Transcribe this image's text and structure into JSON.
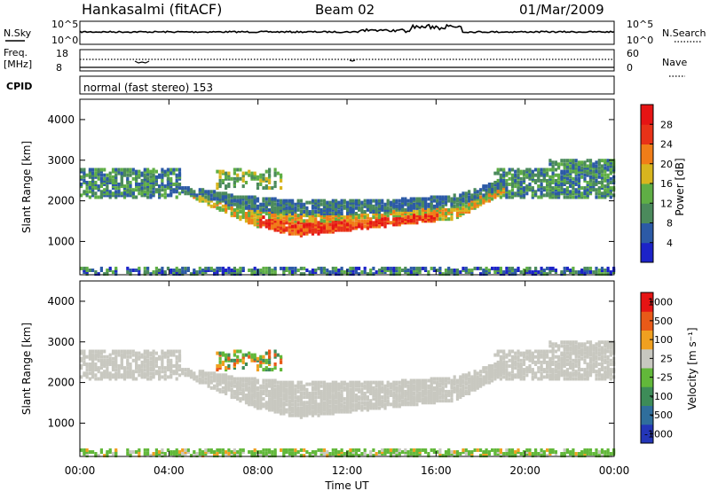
{
  "header": {
    "station": "Hankasalmi (fitACF)",
    "beam": "Beam 02",
    "date": "01/Mar/2009"
  },
  "status_panels": {
    "nsky_label": "N.Sky",
    "nsky_ticks": [
      "10^5",
      "10^0"
    ],
    "nsearch_label": "N.Search",
    "nsearch_ticks": [
      "10^5",
      "10^0"
    ],
    "freq_label_1": "Freq.",
    "freq_label_2": "[MHz]",
    "freq_ticks": [
      "18",
      "8"
    ],
    "nave_label": "Nave",
    "nave_ticks": [
      "60",
      "0"
    ],
    "cpid_label": "CPID",
    "cpid_value": "normal (fast stereo) 153"
  },
  "chart_data": [
    {
      "type": "heatmap",
      "name": "power",
      "ylabel": "Slant Range [km]",
      "ylim": [
        180,
        4500
      ],
      "yticks": [
        1000,
        2000,
        3000,
        4000
      ],
      "xlim": [
        0,
        24
      ],
      "colorbar_label": "Power [dB]",
      "colorbar_ticks": [
        4,
        8,
        12,
        16,
        20,
        24,
        28
      ],
      "colorbar_colors": [
        "#1c23c8",
        "#2c5aa6",
        "#4b8a5c",
        "#5fae45",
        "#d8b51e",
        "#f07d18",
        "#e83218",
        "#e61414"
      ]
    },
    {
      "type": "heatmap",
      "name": "velocity",
      "ylabel": "Slant Range [km]",
      "ylim": [
        180,
        4500
      ],
      "yticks": [
        1000,
        2000,
        3000,
        4000
      ],
      "xlim": [
        0,
        24
      ],
      "xticks": [
        "00:00",
        "04:00",
        "08:00",
        "12:00",
        "16:00",
        "20:00",
        "00:00"
      ],
      "xlabel": "Time UT",
      "colorbar_label": "Velocity [m s⁻¹]",
      "colorbar_ticks": [
        "1000",
        "500",
        "100",
        "25",
        "-25",
        "-100",
        "-500",
        "-1000"
      ],
      "colorbar_colors": [
        "#2436b8",
        "#2f6e9c",
        "#3d8c58",
        "#62b83a",
        "#c8c8c0",
        "#f0a020",
        "#e85a18",
        "#e61414"
      ]
    }
  ]
}
